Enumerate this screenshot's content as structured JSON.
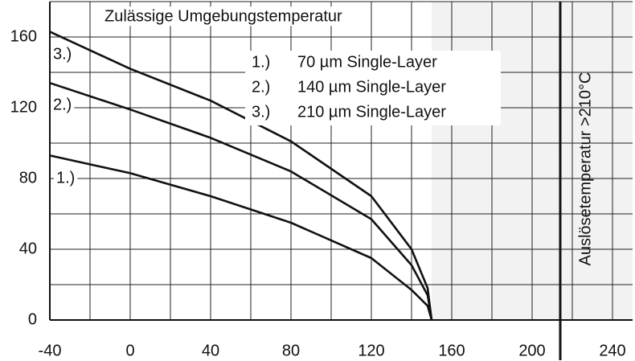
{
  "chart_data": {
    "type": "line",
    "title": "Zulässige Umgebungstemperatur",
    "annotation": "Auslösetemperatur >210°C",
    "threshold": 214,
    "shaded_from": 150,
    "x": [
      -40,
      0,
      40,
      80,
      120,
      140,
      148,
      150
    ],
    "series": [
      {
        "label": "1.)",
        "name": "70 µm Single-Layer",
        "color": "#111111",
        "values": [
          93,
          83,
          70,
          55,
          35,
          17,
          8,
          0
        ]
      },
      {
        "label": "2.)",
        "name": "140 µm Single-Layer",
        "color": "#111111",
        "values": [
          134,
          119,
          103,
          84,
          57,
          31,
          14,
          0
        ]
      },
      {
        "label": "3.)",
        "name": "210 µm Single-Layer",
        "color": "#111111",
        "values": [
          163,
          142,
          124,
          101,
          70,
          40,
          18,
          0
        ]
      }
    ],
    "xlim": [
      -40,
      250
    ],
    "ylim": [
      0,
      180
    ],
    "xticks": [
      -40,
      0,
      40,
      80,
      120,
      160,
      200,
      240
    ],
    "yticks": [
      0,
      40,
      80,
      120,
      160
    ],
    "xminor": [
      -20,
      20,
      60,
      100,
      140,
      180,
      220
    ],
    "yminor": [
      20,
      60,
      100,
      140,
      180
    ],
    "grid": true
  }
}
